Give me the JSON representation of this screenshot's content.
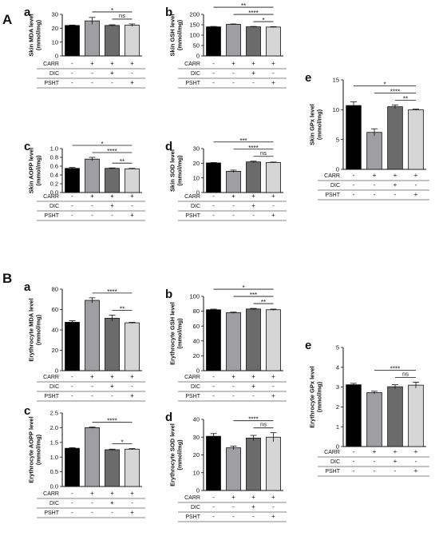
{
  "section_labels": [
    "A",
    "B"
  ],
  "colors": {
    "CARR_neg_DIC_neg_PSHT_neg": "#000000",
    "CARR": "#9e9ea3",
    "DIC": "#6b6b6b",
    "PSHT": "#d6d6d6"
  },
  "chart_data": [
    {
      "id": "A-a",
      "section": "A",
      "letter": "a",
      "type": "bar",
      "ylabel": "Skin MDA level\n(mmol/mg)",
      "ylim": [
        0,
        30
      ],
      "yticks": [
        0,
        10,
        20,
        30
      ],
      "values": [
        22,
        25.3,
        22,
        22.2
      ],
      "errors": [
        0.3,
        2.5,
        0.5,
        0.9
      ],
      "brackets": [
        {
          "from": 1,
          "to": 3,
          "label": "*"
        },
        {
          "from": 2,
          "to": 3,
          "label": "ns"
        }
      ],
      "rows": [
        {
          "label": "CARR",
          "signs": [
            "-",
            "+",
            "+",
            "+"
          ]
        },
        {
          "label": "DIC",
          "signs": [
            "-",
            "-",
            "+",
            "-"
          ]
        },
        {
          "label": "PSHT",
          "signs": [
            "-",
            "-",
            "-",
            "+"
          ]
        }
      ]
    },
    {
      "id": "A-b",
      "section": "A",
      "letter": "b",
      "type": "bar",
      "ylabel": "Skin GSH level\n(mmol/mg)",
      "ylim": [
        0,
        200
      ],
      "yticks": [
        0,
        50,
        100,
        150,
        200
      ],
      "values": [
        140,
        152,
        140,
        139
      ],
      "errors": [
        2,
        2,
        2,
        2
      ],
      "brackets": [
        {
          "from": 0,
          "to": 3,
          "label": "**"
        },
        {
          "from": 1,
          "to": 3,
          "label": "****"
        },
        {
          "from": 2,
          "to": 3,
          "label": "*"
        }
      ],
      "rows": [
        {
          "label": "CARR",
          "signs": [
            "-",
            "+",
            "+",
            "+"
          ]
        },
        {
          "label": "DIC",
          "signs": [
            "-",
            "-",
            "+",
            "-"
          ]
        },
        {
          "label": "PSHT",
          "signs": [
            "-",
            "-",
            "-",
            "+"
          ]
        }
      ]
    },
    {
      "id": "A-c",
      "section": "A",
      "letter": "c",
      "type": "bar",
      "ylabel": "Skin AOPP level\n(mmol/mg)",
      "ylim": [
        0,
        1.0
      ],
      "yticks": [
        0.0,
        0.2,
        0.4,
        0.6,
        0.8,
        1.0
      ],
      "values": [
        0.55,
        0.76,
        0.55,
        0.54
      ],
      "errors": [
        0.02,
        0.04,
        0.01,
        0.01
      ],
      "brackets": [
        {
          "from": 0,
          "to": 3,
          "label": "*"
        },
        {
          "from": 1,
          "to": 3,
          "label": "****"
        },
        {
          "from": 2,
          "to": 3,
          "label": "**"
        }
      ],
      "rows": [
        {
          "label": "CARR",
          "signs": [
            "-",
            "+",
            "+",
            "+"
          ]
        },
        {
          "label": "DIC",
          "signs": [
            "-",
            "-",
            "+",
            "-"
          ]
        },
        {
          "label": "PSHT",
          "signs": [
            "-",
            "-",
            "-",
            "+"
          ]
        }
      ]
    },
    {
      "id": "A-d",
      "section": "A",
      "letter": "d",
      "type": "bar",
      "ylabel": "Skin SOD level\n(mmol/mg)",
      "ylim": [
        0,
        30
      ],
      "yticks": [
        0,
        10,
        20,
        30
      ],
      "values": [
        20.2,
        14.5,
        20.9,
        20.5
      ],
      "errors": [
        0.3,
        0.8,
        0.5,
        0.3
      ],
      "brackets": [
        {
          "from": 0,
          "to": 3,
          "label": "***"
        },
        {
          "from": 1,
          "to": 3,
          "label": "****"
        },
        {
          "from": 2,
          "to": 3,
          "label": "ns"
        }
      ],
      "rows": [
        {
          "label": "CARR",
          "signs": [
            "-",
            "+",
            "+",
            "+"
          ]
        },
        {
          "label": "DIC",
          "signs": [
            "-",
            "-",
            "+",
            "-"
          ]
        },
        {
          "label": "PSHT",
          "signs": [
            "-",
            "-",
            "-",
            "+"
          ]
        }
      ]
    },
    {
      "id": "A-e",
      "section": "A",
      "letter": "e",
      "type": "bar",
      "ylabel": "Skin GPx level\n(mmol/mg)",
      "ylim": [
        0,
        15
      ],
      "yticks": [
        0,
        5,
        10,
        15
      ],
      "values": [
        10.7,
        6.2,
        10.5,
        10.0
      ],
      "errors": [
        0.6,
        0.6,
        0.3,
        0.1
      ],
      "brackets": [
        {
          "from": 0,
          "to": 3,
          "label": "*"
        },
        {
          "from": 1,
          "to": 3,
          "label": "****"
        },
        {
          "from": 2,
          "to": 3,
          "label": "**"
        }
      ],
      "rows": [
        {
          "label": "CARR",
          "signs": [
            "-",
            "+",
            "+",
            "+"
          ]
        },
        {
          "label": "DIC",
          "signs": [
            "-",
            "-",
            "+",
            "-"
          ]
        },
        {
          "label": "PSHT",
          "signs": [
            "-",
            "-",
            "-",
            "+"
          ]
        }
      ]
    },
    {
      "id": "B-a",
      "section": "B",
      "letter": "a",
      "type": "bar",
      "ylabel": "Erythrocyte MDA level\n(mmol/mg)",
      "ylim": [
        0,
        80
      ],
      "yticks": [
        0,
        20,
        40,
        60,
        80
      ],
      "values": [
        47.5,
        69,
        51.5,
        47
      ],
      "errors": [
        1.5,
        2.5,
        3,
        0.5
      ],
      "brackets": [
        {
          "from": 1,
          "to": 3,
          "label": "****"
        },
        {
          "from": 2,
          "to": 3,
          "label": "**"
        }
      ],
      "rows": [
        {
          "label": "CARR",
          "signs": [
            "-",
            "+",
            "+",
            "+"
          ]
        },
        {
          "label": "DIC",
          "signs": [
            "-",
            "-",
            "+",
            "-"
          ]
        },
        {
          "label": "PSHT",
          "signs": [
            "-",
            "-",
            "-",
            "+"
          ]
        }
      ]
    },
    {
      "id": "B-b",
      "section": "B",
      "letter": "b",
      "type": "bar",
      "ylabel": "Erythrocyte GSH level\n(mmol/mg)",
      "ylim": [
        0,
        100
      ],
      "yticks": [
        0,
        20,
        40,
        60,
        80,
        100
      ],
      "values": [
        82,
        78,
        83,
        82
      ],
      "errors": [
        0.8,
        0.8,
        0.8,
        0.8
      ],
      "brackets": [
        {
          "from": 0,
          "to": 3,
          "label": "*"
        },
        {
          "from": 1,
          "to": 3,
          "label": "***"
        },
        {
          "from": 2,
          "to": 3,
          "label": "**"
        }
      ],
      "rows": [
        {
          "label": "CARR",
          "signs": [
            "-",
            "+",
            "+",
            "+"
          ]
        },
        {
          "label": "DIC",
          "signs": [
            "-",
            "-",
            "+",
            "-"
          ]
        },
        {
          "label": "PSHT",
          "signs": [
            "-",
            "-",
            "-",
            "+"
          ]
        }
      ]
    },
    {
      "id": "B-c",
      "section": "B",
      "letter": "c",
      "type": "bar",
      "ylabel": "Erythrocyte AOPP level\n(mmol/mg)",
      "ylim": [
        0,
        2.5
      ],
      "yticks": [
        0.0,
        0.5,
        1.0,
        1.5,
        2.0,
        2.5
      ],
      "values": [
        1.3,
        2.0,
        1.25,
        1.27
      ],
      "errors": [
        0.02,
        0.02,
        0.02,
        0.02
      ],
      "brackets": [
        {
          "from": 1,
          "to": 3,
          "label": "****"
        },
        {
          "from": 2,
          "to": 3,
          "label": "*"
        }
      ],
      "rows": [
        {
          "label": "CARR",
          "signs": [
            "-",
            "+",
            "+",
            "+"
          ]
        },
        {
          "label": "DIC",
          "signs": [
            "-",
            "-",
            "+",
            "-"
          ]
        },
        {
          "label": "PSHT",
          "signs": [
            "-",
            "-",
            "-",
            "+"
          ]
        }
      ]
    },
    {
      "id": "B-d",
      "section": "B",
      "letter": "d",
      "type": "bar",
      "ylabel": "Erythrocyte SOD level\n(mmol/mg)",
      "ylim": [
        0,
        40
      ],
      "yticks": [
        0,
        10,
        20,
        30,
        40
      ],
      "values": [
        30.5,
        24,
        29.5,
        30
      ],
      "errors": [
        1.5,
        1,
        1.5,
        2.5
      ],
      "brackets": [
        {
          "from": 1,
          "to": 3,
          "label": "****"
        },
        {
          "from": 2,
          "to": 3,
          "label": "ns"
        }
      ],
      "rows": [
        {
          "label": "CARR",
          "signs": [
            "-",
            "+",
            "+",
            "+"
          ]
        },
        {
          "label": "DIC",
          "signs": [
            "-",
            "-",
            "+",
            "-"
          ]
        },
        {
          "label": "PSHT",
          "signs": [
            "-",
            "-",
            "-",
            "+"
          ]
        }
      ]
    },
    {
      "id": "B-e",
      "section": "B",
      "letter": "e",
      "type": "bar",
      "ylabel": "Erythrocyte GPx level\n(mmol/mg)",
      "ylim": [
        0,
        5
      ],
      "yticks": [
        0,
        1,
        2,
        3,
        4,
        5
      ],
      "values": [
        3.12,
        2.72,
        3.02,
        3.1
      ],
      "errors": [
        0.07,
        0.07,
        0.1,
        0.15
      ],
      "brackets": [
        {
          "from": 1,
          "to": 3,
          "label": "****"
        },
        {
          "from": 2,
          "to": 3,
          "label": "ns"
        }
      ],
      "rows": [
        {
          "label": "CARR",
          "signs": [
            "-",
            "+",
            "+",
            "+"
          ]
        },
        {
          "label": "DIC",
          "signs": [
            "-",
            "-",
            "+",
            "-"
          ]
        },
        {
          "label": "PSHT",
          "signs": [
            "-",
            "-",
            "-",
            "+"
          ]
        }
      ]
    }
  ]
}
